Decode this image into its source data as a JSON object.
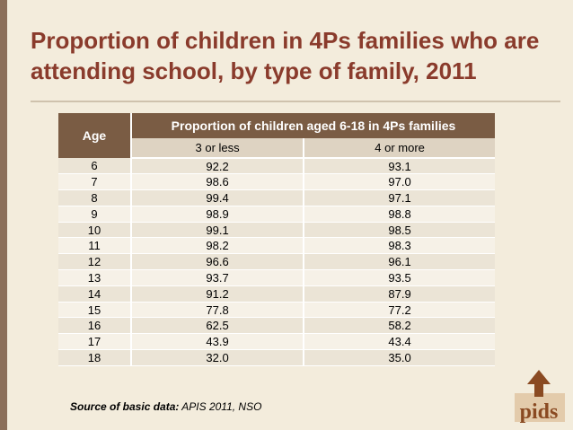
{
  "title": "Proportion of children in 4Ps families who are attending school, by type of family, 2011",
  "table": {
    "age_header": "Age",
    "group_header": "Proportion of children aged 6-18 in 4Ps families",
    "columns": [
      "3 or less",
      "4 or more"
    ],
    "rows": [
      {
        "age": "6",
        "a": "92.2",
        "b": "93.1"
      },
      {
        "age": "7",
        "a": "98.6",
        "b": "97.0"
      },
      {
        "age": "8",
        "a": "99.4",
        "b": "97.1"
      },
      {
        "age": "9",
        "a": "98.9",
        "b": "98.8"
      },
      {
        "age": "10",
        "a": "99.1",
        "b": "98.5"
      },
      {
        "age": "11",
        "a": "98.2",
        "b": "98.3"
      },
      {
        "age": "12",
        "a": "96.6",
        "b": "96.1"
      },
      {
        "age": "13",
        "a": "93.7",
        "b": "93.5"
      },
      {
        "age": "14",
        "a": "91.2",
        "b": "87.9"
      },
      {
        "age": "15",
        "a": "77.8",
        "b": "77.2"
      },
      {
        "age": "16",
        "a": "62.5",
        "b": "58.2"
      },
      {
        "age": "17",
        "a": "43.9",
        "b": "43.4"
      },
      {
        "age": "18",
        "a": "32.0",
        "b": "35.0"
      }
    ]
  },
  "source": {
    "label": "Source of basic data:",
    "text": " APIS 2011, NSO"
  },
  "logo": {
    "text": "pids",
    "colors": {
      "primary": "#8a4a22",
      "shadow": "#d9b58a"
    }
  }
}
